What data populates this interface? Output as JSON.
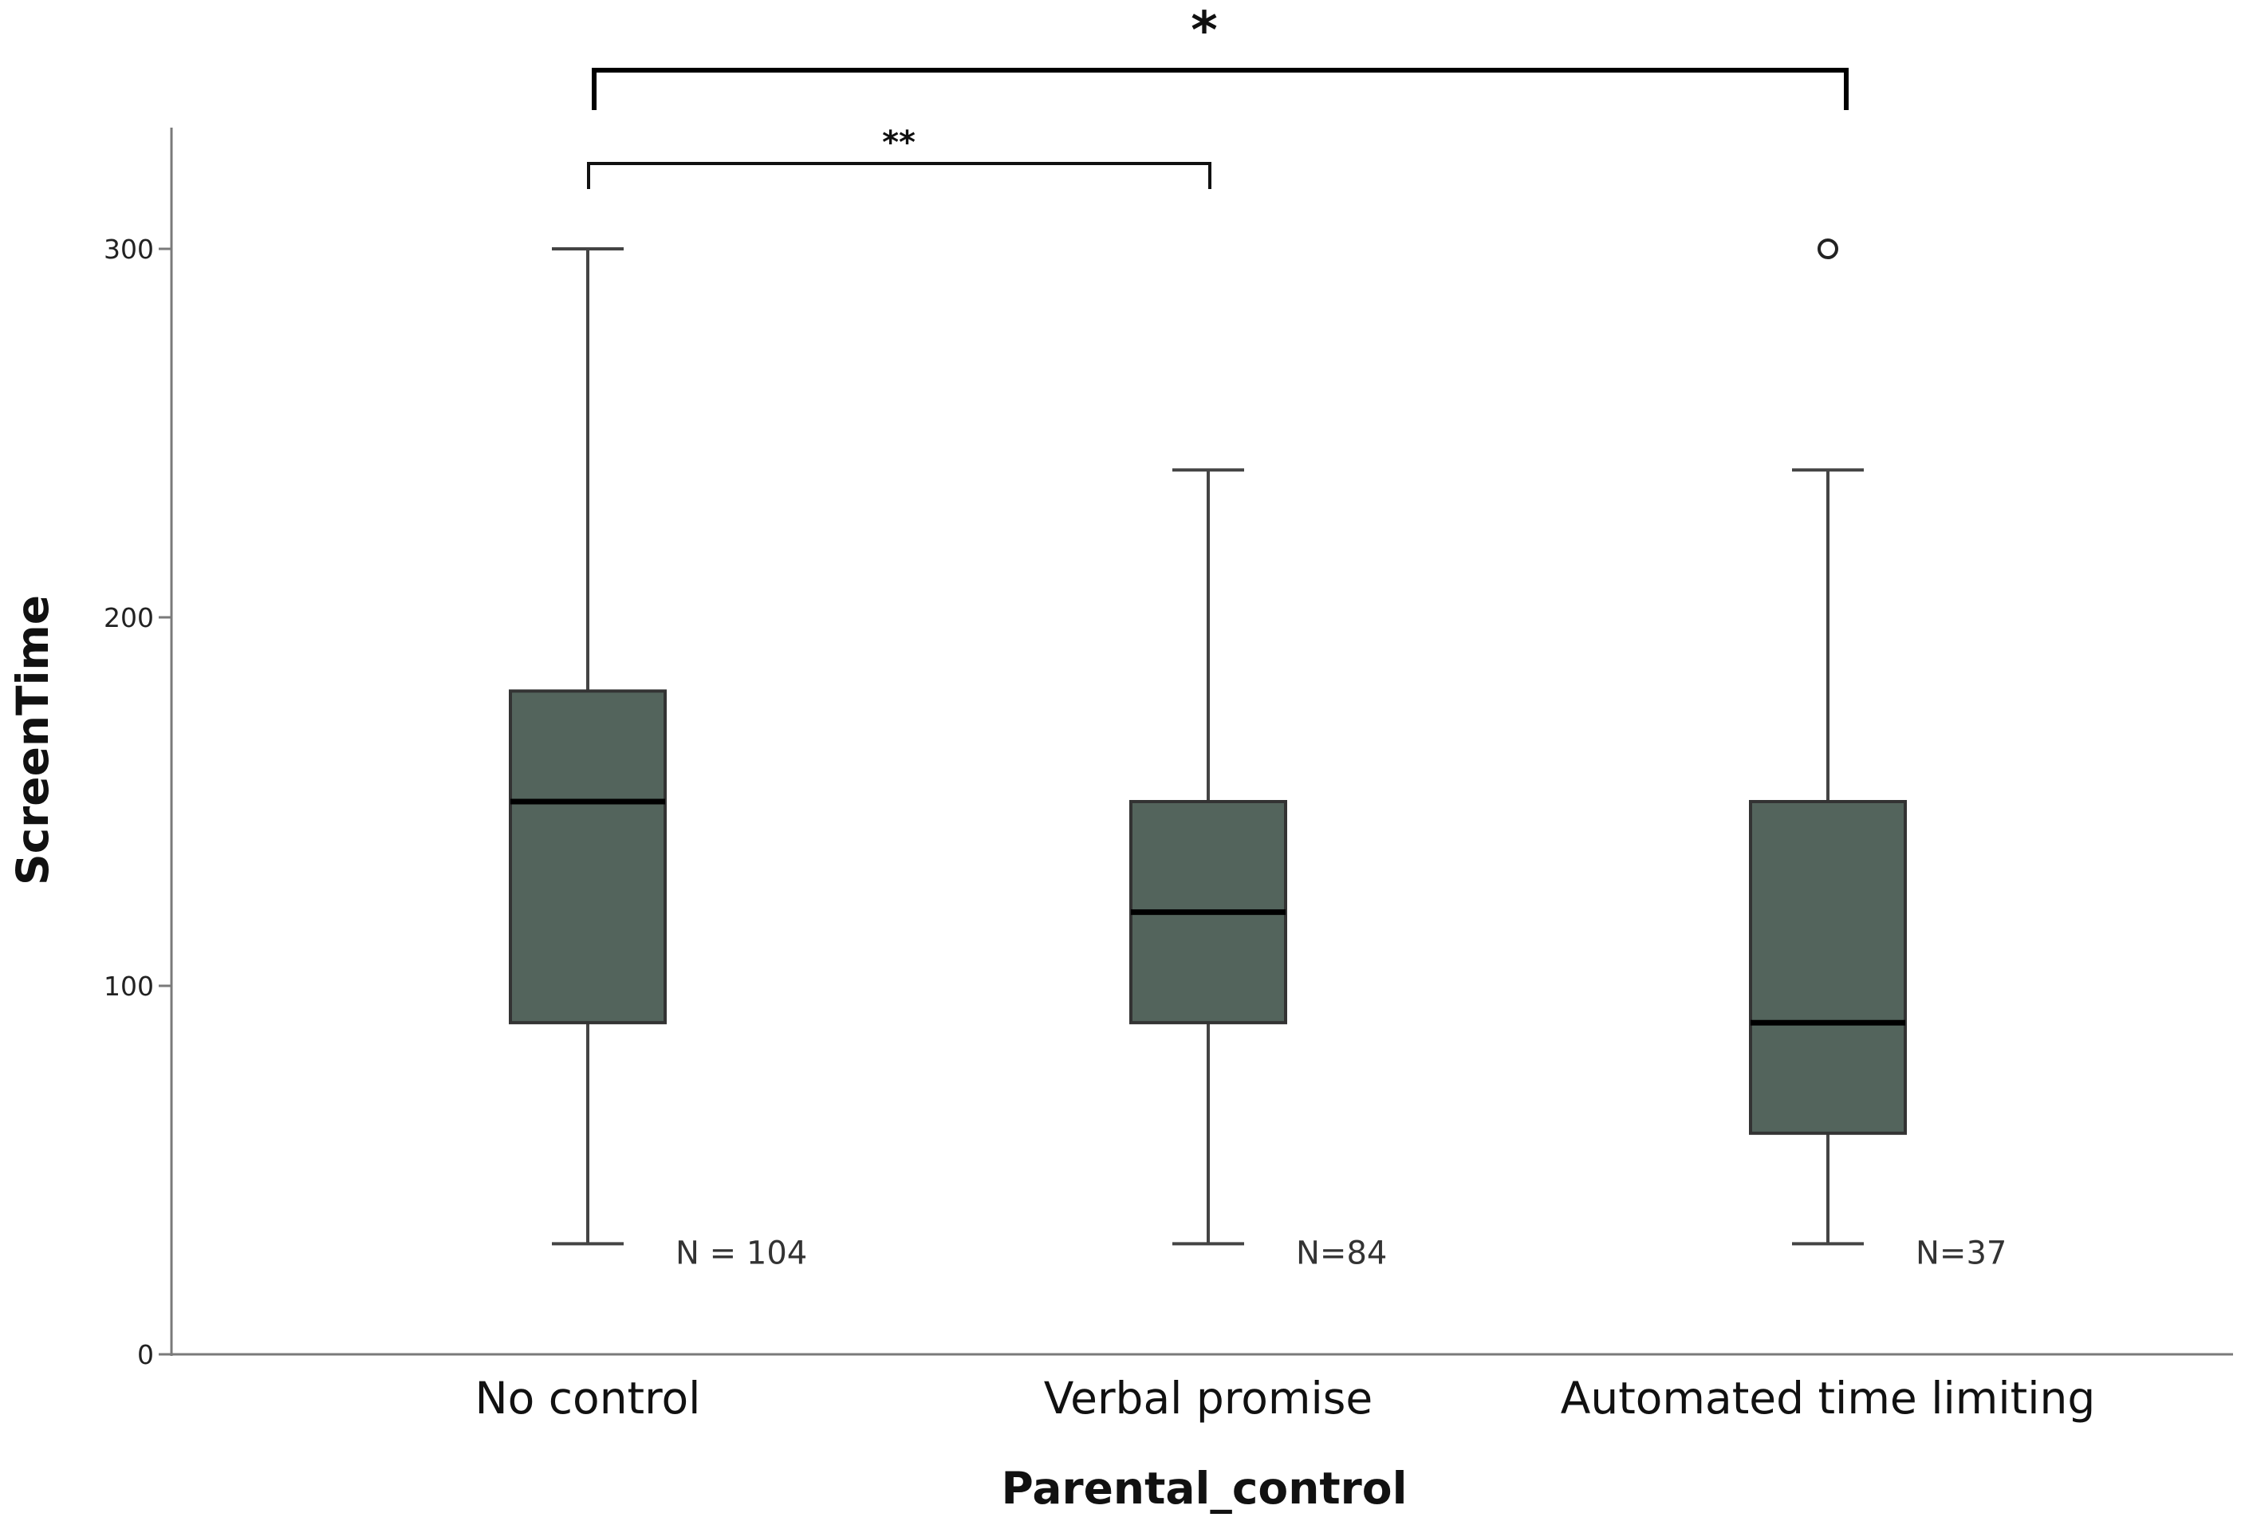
{
  "chart_data": {
    "type": "boxplot",
    "title": "",
    "xlabel": "Parental_control",
    "ylabel": "ScreenTime",
    "ylim": [
      0,
      330
    ],
    "yticks": [
      0,
      100,
      200,
      300
    ],
    "box_color": "#53645c",
    "categories": [
      "No control",
      "Verbal promise",
      "Automated time limiting"
    ],
    "boxes": [
      {
        "category": "No control",
        "min": 30,
        "q1": 90,
        "median": 150,
        "q3": 180,
        "max": 300,
        "outliers": [],
        "n_label": "N = 104"
      },
      {
        "category": "Verbal promise",
        "min": 30,
        "q1": 90,
        "median": 120,
        "q3": 150,
        "max": 240,
        "outliers": [],
        "n_label": "N=84"
      },
      {
        "category": "Automated time limiting",
        "min": 30,
        "q1": 60,
        "median": 90,
        "q3": 150,
        "max": 240,
        "outliers": [
          300
        ],
        "n_label": "N=37"
      }
    ],
    "significance": [
      {
        "from": 0,
        "to": 1,
        "label": "**"
      },
      {
        "from": 0,
        "to": 2,
        "label": "*"
      }
    ]
  }
}
